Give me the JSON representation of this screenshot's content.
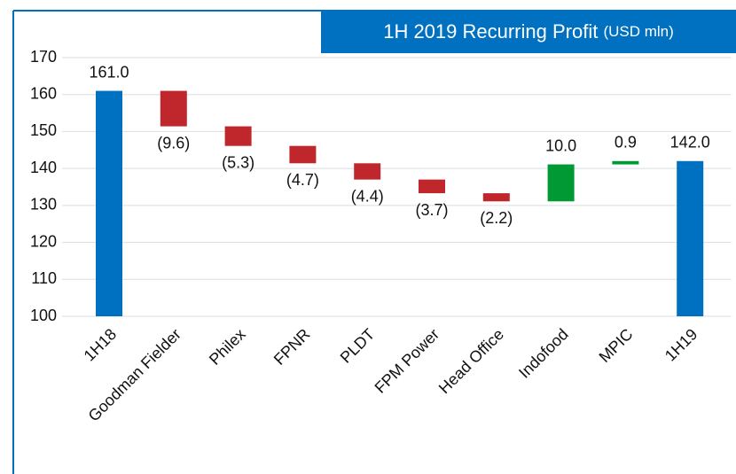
{
  "chart_data": {
    "type": "waterfall",
    "title": "1H 2019 Recurring Profit",
    "subtitle": "(USD mln)",
    "categories": [
      "1H18",
      "Goodman Fielder",
      "Philex",
      "FPNR",
      "PLDT",
      "FPM Power",
      "Head Office",
      "Indofood",
      "MPIC",
      "1H19"
    ],
    "values": [
      161.0,
      -9.6,
      -5.3,
      -4.7,
      -4.4,
      -3.7,
      -2.2,
      10.0,
      0.9,
      142.0
    ],
    "value_labels": [
      "161.0",
      "(9.6)",
      "(5.3)",
      "(4.7)",
      "(4.4)",
      "(3.7)",
      "(2.2)",
      "10.0",
      "0.9",
      "142.0"
    ],
    "measures": [
      "absolute",
      "relative",
      "relative",
      "relative",
      "relative",
      "relative",
      "relative",
      "relative",
      "relative",
      "absolute"
    ],
    "total_color": "#0070c0",
    "increase_color": "#009933",
    "decrease_color": "#c0272d",
    "ylim": [
      100,
      170
    ],
    "yticks": [
      100,
      110,
      120,
      130,
      140,
      150,
      160,
      170
    ],
    "grid": true
  }
}
